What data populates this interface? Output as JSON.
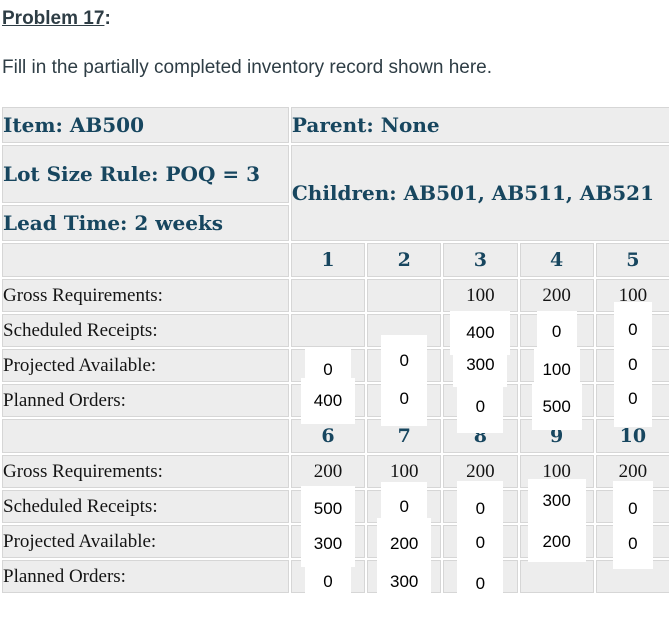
{
  "page": {
    "title": "Problem 17",
    "title_suffix": ":",
    "instruction": "Fill in the partially completed inventory record shown here."
  },
  "colors": {
    "accent_text": "#17465f",
    "cell_bg": "#ededed",
    "cell_border": "#d6d6d6",
    "body_text": "#2e3d45",
    "answer_box_bg": "#ffffff"
  },
  "record": {
    "item": "Item: AB500",
    "parent": "Parent: None",
    "lot_size_rule": "Lot Size Rule: POQ = 3",
    "lead_time": "Lead Time: 2 weeks",
    "children": "Children: AB501, AB511, AB521"
  },
  "grid": {
    "sections": [
      {
        "periods": [
          "1",
          "2",
          "3",
          "4",
          "5"
        ],
        "rows": [
          {
            "label": "Gross Requirements:",
            "cells": [
              {
                "type": "blank"
              },
              {
                "type": "blank"
              },
              {
                "type": "given",
                "value": "100"
              },
              {
                "type": "given",
                "value": "200"
              },
              {
                "type": "given",
                "value": "100"
              }
            ]
          },
          {
            "label": "Scheduled Receipts:",
            "cells": [
              {
                "type": "blank"
              },
              {
                "type": "blank"
              },
              {
                "type": "answer",
                "value": "400"
              },
              {
                "type": "answer",
                "value": "0"
              },
              {
                "type": "answer",
                "value": "0"
              }
            ]
          },
          {
            "label": "Projected Available:",
            "cells": [
              {
                "type": "answer",
                "value": "0"
              },
              {
                "type": "answer",
                "value": "0"
              },
              {
                "type": "answer",
                "value": "300"
              },
              {
                "type": "answer",
                "value": "100"
              },
              {
                "type": "answer",
                "value": "0"
              }
            ]
          },
          {
            "label": "Planned Orders:",
            "cells": [
              {
                "type": "answer",
                "value": "400"
              },
              {
                "type": "answer",
                "value": "0"
              },
              {
                "type": "answer",
                "value": "0"
              },
              {
                "type": "answer",
                "value": "500"
              },
              {
                "type": "answer",
                "value": "0"
              }
            ]
          }
        ]
      },
      {
        "periods": [
          "6",
          "7",
          "8",
          "9",
          "10"
        ],
        "rows": [
          {
            "label": "Gross Requirements:",
            "cells": [
              {
                "type": "given",
                "value": "200"
              },
              {
                "type": "given",
                "value": "100"
              },
              {
                "type": "given",
                "value": "200"
              },
              {
                "type": "given",
                "value": "100"
              },
              {
                "type": "given",
                "value": "200"
              }
            ]
          },
          {
            "label": "Scheduled Receipts:",
            "cells": [
              {
                "type": "answer",
                "value": "500"
              },
              {
                "type": "answer",
                "value": "0"
              },
              {
                "type": "answer",
                "value": "0"
              },
              {
                "type": "answer",
                "value": "300"
              },
              {
                "type": "answer",
                "value": "0"
              }
            ]
          },
          {
            "label": "Projected Available:",
            "cells": [
              {
                "type": "answer",
                "value": "300"
              },
              {
                "type": "answer",
                "value": "200"
              },
              {
                "type": "answer",
                "value": "0"
              },
              {
                "type": "answer",
                "value": "200"
              },
              {
                "type": "answer",
                "value": "0"
              }
            ]
          },
          {
            "label": "Planned Orders:",
            "cells": [
              {
                "type": "answer",
                "value": "0"
              },
              {
                "type": "answer",
                "value": "300"
              },
              {
                "type": "answer",
                "value": "0"
              },
              {
                "type": "blank"
              },
              {
                "type": "blank"
              }
            ]
          }
        ]
      }
    ]
  }
}
